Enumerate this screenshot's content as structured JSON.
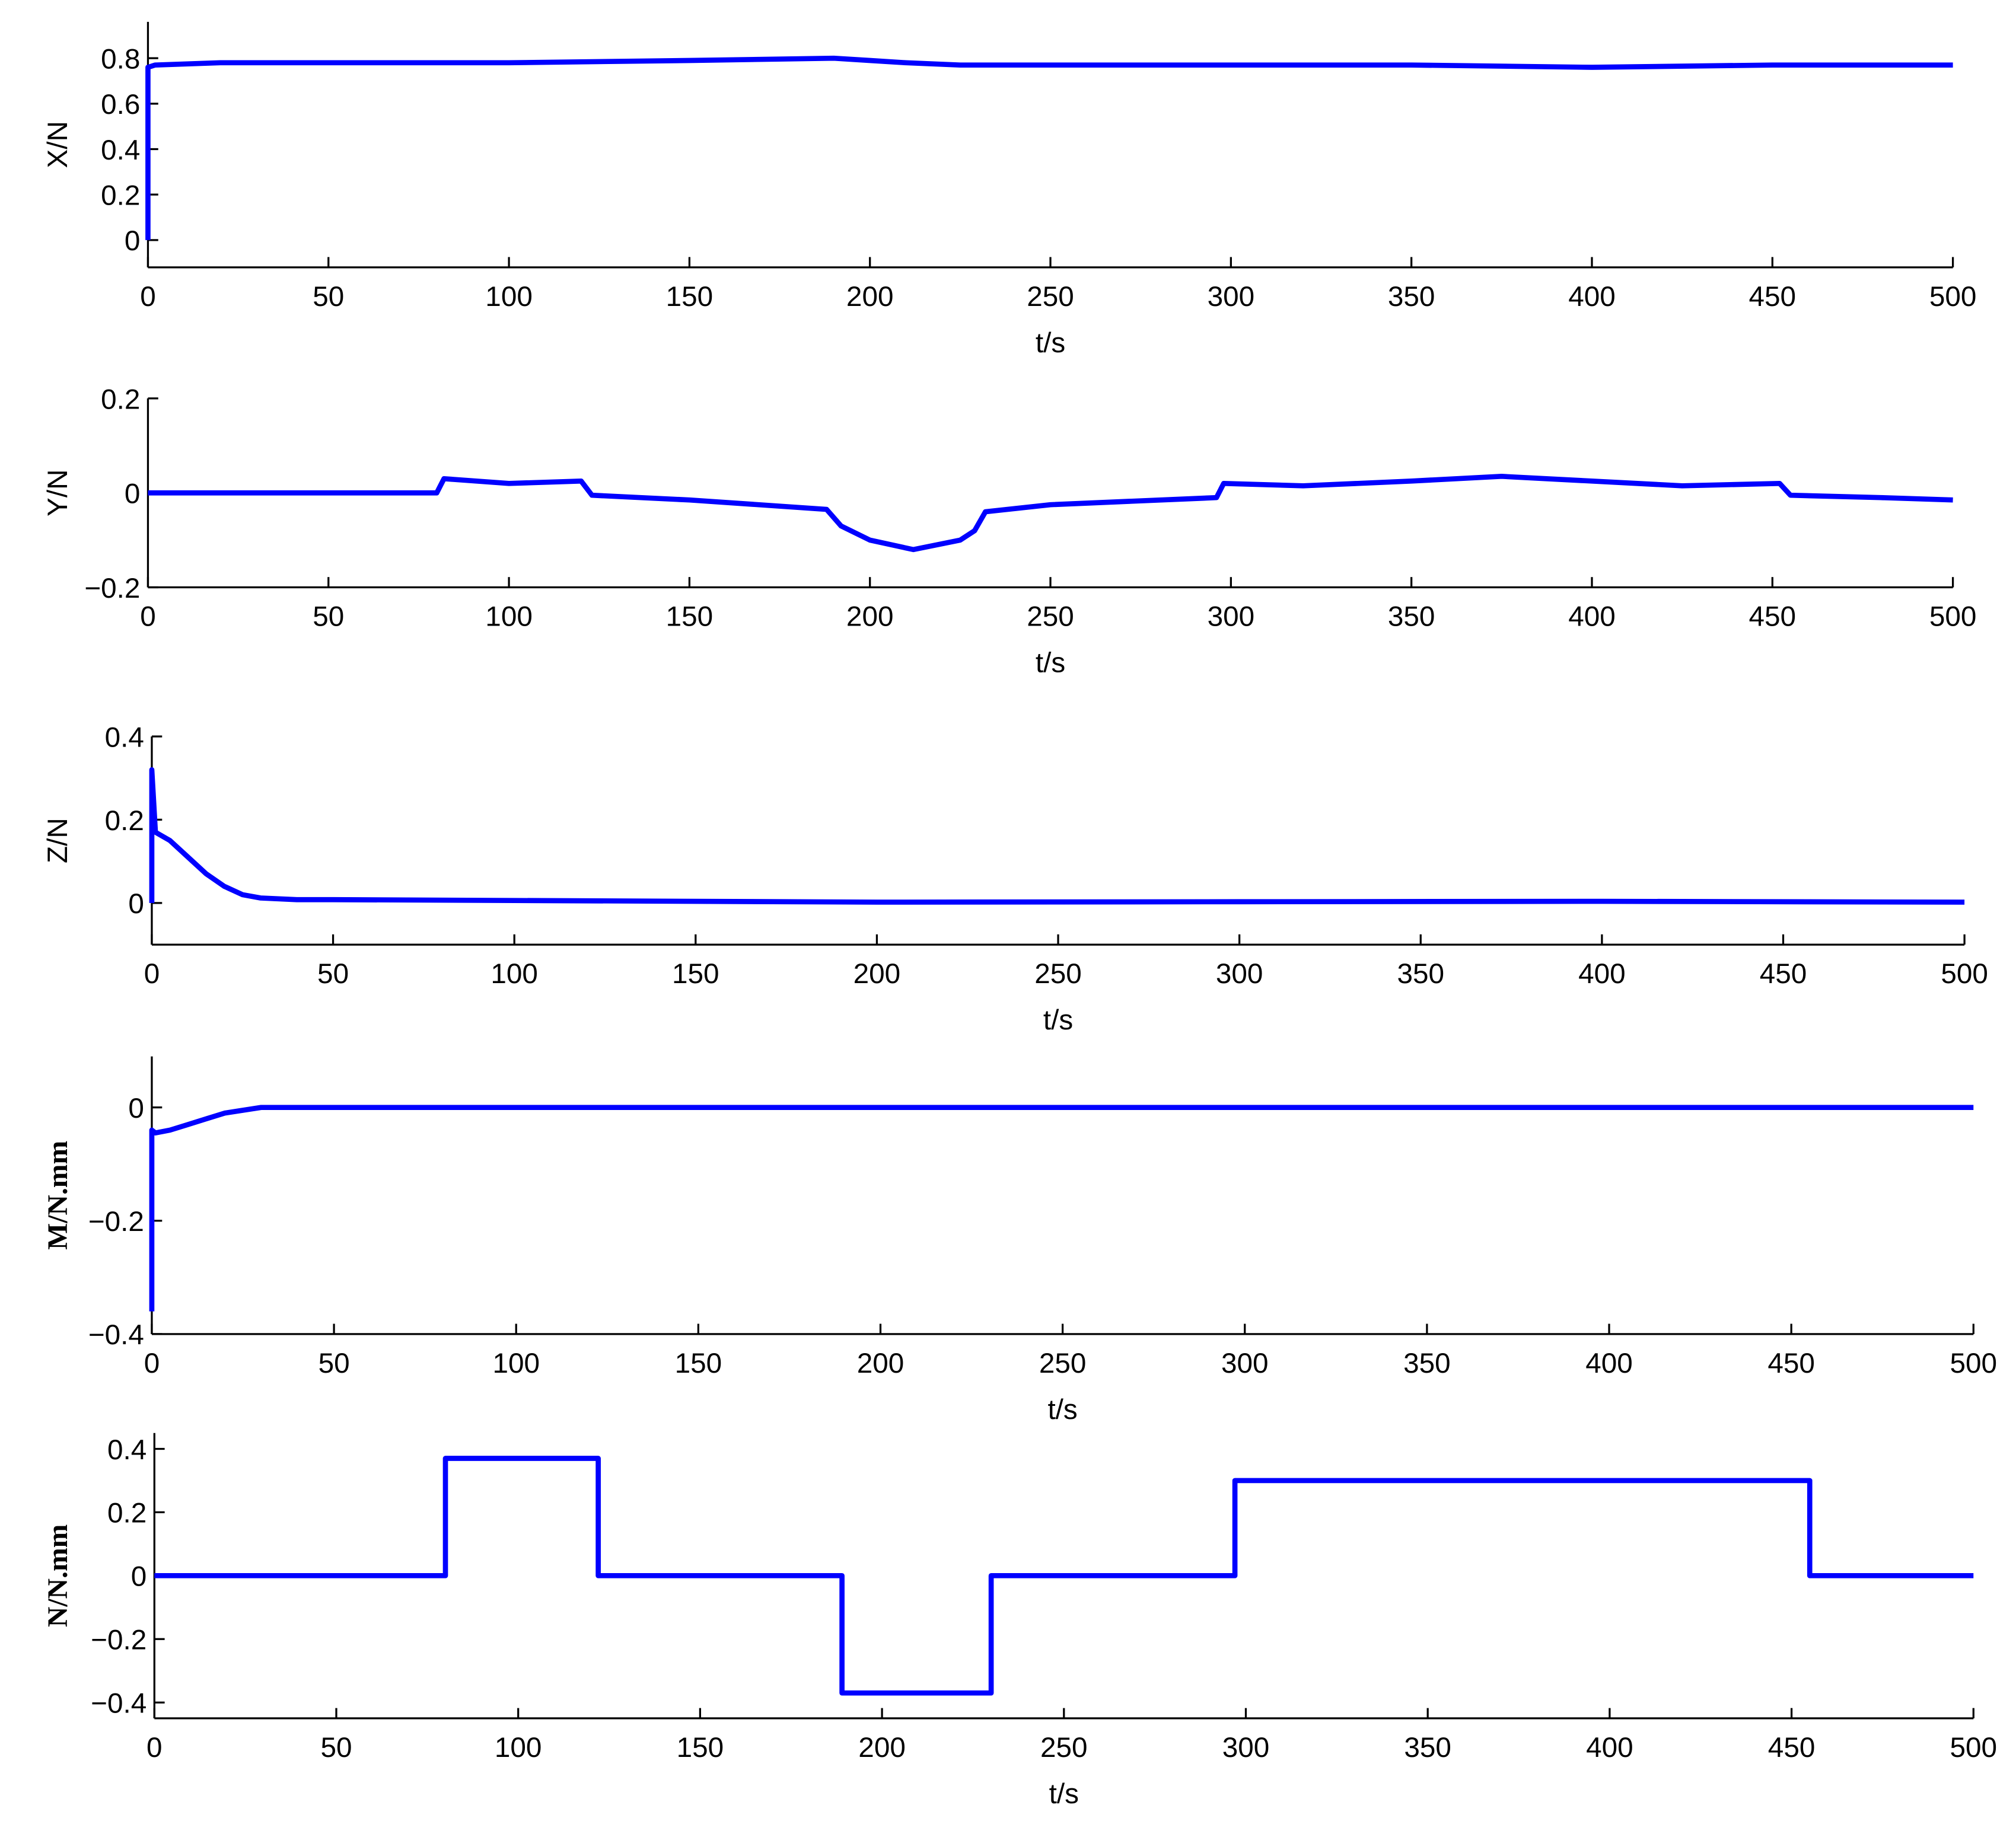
{
  "chart_data": [
    {
      "type": "line",
      "xlabel": "t/s",
      "ylabel": "X/N",
      "color": "#0000ff",
      "x": [
        0,
        0,
        2,
        20,
        50,
        100,
        150,
        190,
        200,
        210,
        225,
        250,
        300,
        350,
        400,
        450,
        500
      ],
      "values": [
        0,
        0.76,
        0.77,
        0.78,
        0.78,
        0.78,
        0.79,
        0.8,
        0.79,
        0.78,
        0.77,
        0.77,
        0.77,
        0.77,
        0.76,
        0.77,
        0.77
      ],
      "xlim": [
        0,
        500
      ],
      "ylim": [
        -0.12,
        0.96
      ],
      "xticks": [
        0,
        50,
        100,
        150,
        200,
        250,
        300,
        350,
        400,
        450,
        500
      ],
      "yticks": [
        0,
        0.2,
        0.4,
        0.6,
        0.8
      ]
    },
    {
      "type": "line",
      "xlabel": "t/s",
      "ylabel": "Y/N",
      "color": "#0000ff",
      "x": [
        0,
        80,
        82,
        100,
        120,
        123,
        150,
        188,
        192,
        200,
        212,
        225,
        229,
        232,
        250,
        296,
        298,
        320,
        350,
        375,
        400,
        425,
        452,
        455,
        480,
        500
      ],
      "values": [
        0,
        0,
        0.03,
        0.02,
        0.025,
        -0.005,
        -0.015,
        -0.035,
        -0.07,
        -0.1,
        -0.12,
        -0.1,
        -0.08,
        -0.04,
        -0.025,
        -0.01,
        0.02,
        0.015,
        0.025,
        0.035,
        0.025,
        0.015,
        0.02,
        -0.005,
        -0.01,
        -0.015
      ],
      "xlim": [
        0,
        500
      ],
      "ylim": [
        -0.2,
        0.2
      ],
      "xticks": [
        0,
        50,
        100,
        150,
        200,
        250,
        300,
        350,
        400,
        450,
        500
      ],
      "yticks": [
        {
          "value": -0.2,
          "label": "−0.2"
        },
        0,
        0.2
      ]
    },
    {
      "type": "line",
      "xlabel": "t/s",
      "ylabel": "Z/N",
      "color": "#0000ff",
      "x": [
        0,
        0,
        1,
        5,
        10,
        15,
        20,
        25,
        30,
        40,
        50,
        100,
        200,
        300,
        400,
        500
      ],
      "values": [
        0,
        0.32,
        0.17,
        0.15,
        0.11,
        0.07,
        0.04,
        0.02,
        0.012,
        0.008,
        0.008,
        0.006,
        0.002,
        0.003,
        0.004,
        0.002
      ],
      "xlim": [
        0,
        500
      ],
      "ylim": [
        -0.1,
        0.4
      ],
      "xticks": [
        0,
        50,
        100,
        150,
        200,
        250,
        300,
        350,
        400,
        450,
        500
      ],
      "yticks": [
        0,
        0.2,
        0.4
      ]
    },
    {
      "type": "line",
      "xlabel": "t/s",
      "ylabel": "M/N.mm",
      "color": "#0000ff",
      "x": [
        0,
        0,
        1,
        5,
        10,
        15,
        20,
        25,
        30,
        40,
        100,
        500
      ],
      "values": [
        -0.36,
        -0.04,
        -0.045,
        -0.04,
        -0.03,
        -0.02,
        -0.01,
        -0.005,
        0,
        0,
        0,
        0
      ],
      "xlim": [
        0,
        500
      ],
      "ylim": [
        -0.4,
        0.09
      ],
      "xticks": [
        0,
        50,
        100,
        150,
        200,
        250,
        300,
        350,
        400,
        450,
        500
      ],
      "yticks": [
        {
          "value": -0.4,
          "label": "−0.4"
        },
        {
          "value": -0.2,
          "label": "−0.2"
        },
        0
      ]
    },
    {
      "type": "line",
      "xlabel": "t/s",
      "ylabel": "N/N.mm",
      "color": "#0000ff",
      "x": [
        0,
        80,
        80,
        122,
        122,
        189,
        189,
        230,
        230,
        297,
        297,
        455,
        455,
        500
      ],
      "values": [
        0,
        0,
        0.37,
        0.37,
        0,
        0,
        -0.37,
        -0.37,
        0,
        0,
        0.3,
        0.3,
        0,
        0
      ],
      "xlim": [
        0,
        500
      ],
      "ylim": [
        -0.45,
        0.45
      ],
      "xticks": [
        0,
        50,
        100,
        150,
        200,
        250,
        300,
        350,
        400,
        450,
        500
      ],
      "yticks": [
        {
          "value": -0.4,
          "label": "−0.4"
        },
        {
          "value": -0.2,
          "label": "−0.2"
        },
        0,
        0.2,
        0.4
      ]
    }
  ]
}
